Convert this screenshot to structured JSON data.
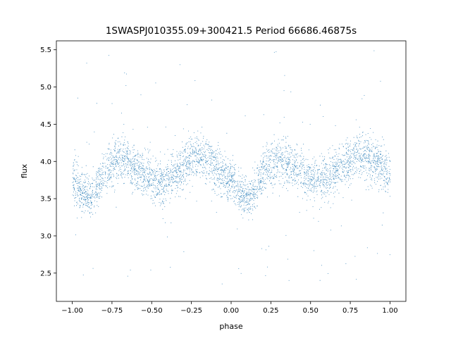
{
  "chart_data": {
    "type": "scatter",
    "title": "1SWASPJ010355.09+300421.5 Period 66686.46875s",
    "xlabel": "phase",
    "ylabel": "flux",
    "xlim": [
      -1.1,
      1.1
    ],
    "ylim": [
      2.12,
      5.62
    ],
    "grid": false,
    "point_color": "#1f77b4",
    "x_ticks": [
      -1.0,
      -0.75,
      -0.5,
      -0.25,
      0.0,
      0.25,
      0.5,
      0.75,
      1.0
    ],
    "x_tick_labels": [
      "−1.00",
      "−0.75",
      "−0.50",
      "−0.25",
      "0.00",
      "0.25",
      "0.50",
      "0.75",
      "1.00"
    ],
    "y_ticks": [
      2.5,
      3.0,
      3.5,
      4.0,
      4.5,
      5.0,
      5.5
    ],
    "y_tick_labels": [
      "2.5",
      "3.0",
      "3.5",
      "4.0",
      "4.5",
      "5.0",
      "5.5"
    ],
    "x_range": [
      -1.0,
      1.0
    ],
    "series": [
      {
        "x": [
          -1.0,
          -0.95,
          -0.9,
          -0.85,
          -0.8,
          -0.75,
          -0.7,
          -0.65,
          -0.6,
          -0.55,
          -0.5,
          -0.45,
          -0.4,
          -0.35,
          -0.3,
          -0.25,
          -0.2,
          -0.15,
          -0.1,
          -0.05,
          0.0,
          0.05,
          0.1,
          0.15,
          0.2,
          0.25,
          0.3,
          0.35,
          0.4,
          0.45,
          0.5,
          0.55,
          0.6,
          0.65,
          0.7,
          0.75,
          0.8,
          0.85,
          0.9,
          0.95,
          1.0
        ],
        "y": [
          3.78,
          3.62,
          3.52,
          3.62,
          3.86,
          3.98,
          4.05,
          4.02,
          3.92,
          3.82,
          3.75,
          3.72,
          3.76,
          3.85,
          3.95,
          4.03,
          4.07,
          4.03,
          3.93,
          3.82,
          3.72,
          3.55,
          3.48,
          3.62,
          3.85,
          3.98,
          4.05,
          4.02,
          3.92,
          3.82,
          3.75,
          3.72,
          3.76,
          3.85,
          3.95,
          4.03,
          4.07,
          4.05,
          4.0,
          3.92,
          3.8
        ],
        "spread": [
          0.3,
          0.28,
          0.28,
          0.28,
          0.3,
          0.3,
          0.3,
          0.3,
          0.3,
          0.3,
          0.3,
          0.3,
          0.3,
          0.3,
          0.3,
          0.3,
          0.3,
          0.3,
          0.3,
          0.28,
          0.28,
          0.26,
          0.26,
          0.28,
          0.3,
          0.3,
          0.3,
          0.3,
          0.3,
          0.3,
          0.3,
          0.3,
          0.3,
          0.3,
          0.3,
          0.3,
          0.3,
          0.3,
          0.3,
          0.3,
          0.3
        ]
      }
    ]
  }
}
